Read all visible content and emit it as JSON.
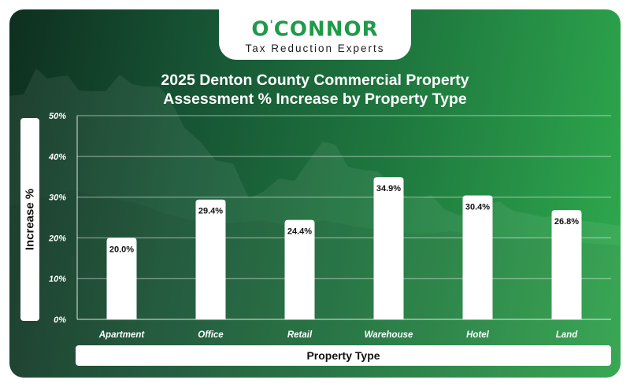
{
  "brand": {
    "name_pre": "O",
    "name_mark": "'",
    "name_post": "CONNOR",
    "tagline": "Tax Reduction Experts",
    "accent": "#1f9a49"
  },
  "chart_data": {
    "type": "bar",
    "title_line1": "2025 Denton County Commercial Property",
    "title_line2": "Assessment % Increase by Property Type",
    "xlabel": "Property Type",
    "ylabel": "Increase %",
    "categories": [
      "Apartment",
      "Office",
      "Retail",
      "Warehouse",
      "Hotel",
      "Land"
    ],
    "values": [
      20.0,
      29.4,
      24.4,
      34.9,
      30.4,
      26.8
    ],
    "value_labels": [
      "20.0%",
      "29.4%",
      "24.4%",
      "34.9%",
      "30.4%",
      "26.8%"
    ],
    "yticks": [
      0,
      10,
      20,
      30,
      40,
      50
    ],
    "ytick_labels": [
      "0%",
      "10%",
      "20%",
      "30%",
      "40%",
      "50%"
    ],
    "ylim": [
      0,
      50
    ],
    "grid": true,
    "bar_color": "#ffffff"
  }
}
